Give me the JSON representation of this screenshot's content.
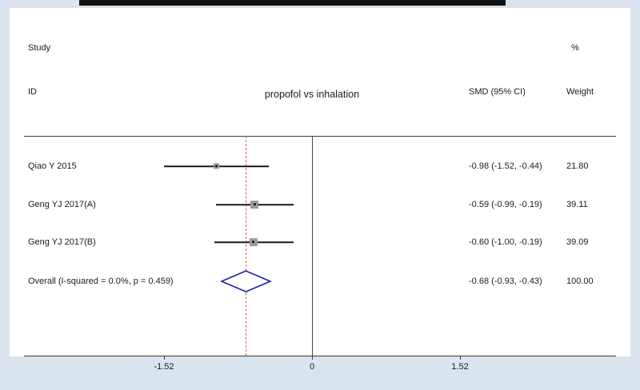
{
  "header": {
    "col_study_line1": "Study",
    "col_study_line2": "ID",
    "col_smd": "SMD (95% CI)",
    "col_weight_line1": "%",
    "col_weight_line2": "Weight"
  },
  "chart_data": {
    "type": "forest",
    "title": "propofol vs inhalation",
    "effect_measure": "SMD (95% CI)",
    "x_ticks": [
      -1.52,
      0,
      1.52
    ],
    "x_tick_labels": [
      "-1.52",
      "0",
      "1.52"
    ],
    "xlim": [
      -2.96,
      3.12
    ],
    "zero_line": 0,
    "pooled_line": -0.68,
    "studies": [
      {
        "id": "Qiao Y 2015",
        "smd": -0.98,
        "ci_low": -1.52,
        "ci_high": -0.44,
        "label": "-0.98 (-1.52, -0.44)",
        "weight": "21.80",
        "weight_value": 21.8
      },
      {
        "id": "Geng YJ 2017(A)",
        "smd": -0.59,
        "ci_low": -0.99,
        "ci_high": -0.19,
        "label": "-0.59 (-0.99, -0.19)",
        "weight": "39.11",
        "weight_value": 39.11
      },
      {
        "id": "Geng YJ 2017(B)",
        "smd": -0.6,
        "ci_low": -1.0,
        "ci_high": -0.19,
        "label": "-0.60 (-1.00, -0.19)",
        "weight": "39.09",
        "weight_value": 39.09
      }
    ],
    "overall": {
      "id": "Overall  (I-squared = 0.0%, p = 0.459)",
      "smd": -0.68,
      "ci_low": -0.93,
      "ci_high": -0.43,
      "label": "-0.68 (-0.93, -0.43)",
      "weight": "100.00",
      "weight_value": 100.0
    },
    "colors": {
      "diamond_stroke": "#2020ad",
      "pooled_line": "#e0614e",
      "background": "#d9e4ee",
      "marker_fill": "#9a9a9a"
    },
    "legend_position": "none",
    "grid": false
  }
}
